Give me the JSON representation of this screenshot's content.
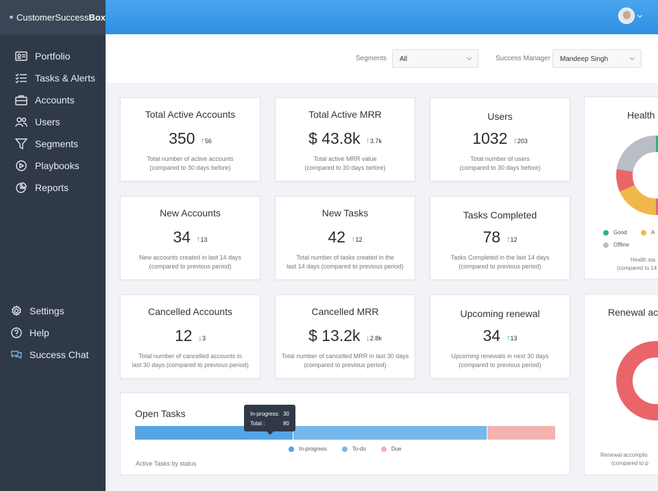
{
  "app": {
    "logo_prefix": "CustomerSuccess",
    "logo_suffix": "Box"
  },
  "sidebar": {
    "items": [
      {
        "label": "Portfolio",
        "icon": "portfolio-icon"
      },
      {
        "label": "Tasks & Alerts",
        "icon": "tasks-icon"
      },
      {
        "label": "Accounts",
        "icon": "briefcase-icon"
      },
      {
        "label": "Users",
        "icon": "users-icon"
      },
      {
        "label": "Segments",
        "icon": "filter-icon"
      },
      {
        "label": "Playbooks",
        "icon": "play-icon"
      },
      {
        "label": "Reports",
        "icon": "pie-chart-icon"
      }
    ],
    "bottom_items": [
      {
        "label": "Settings",
        "icon": "gear-icon"
      },
      {
        "label": "Help",
        "icon": "help-icon"
      },
      {
        "label": "Success Chat",
        "icon": "chat-icon"
      }
    ]
  },
  "filters": {
    "segments_label": "Segments",
    "segments_value": "All",
    "manager_label": "Success Manager",
    "manager_value": "Mandeep Singh"
  },
  "cards": [
    {
      "title": "Total Active Accounts",
      "value": "350",
      "delta": "56",
      "dir": "up",
      "desc1": "Total number of active accounts",
      "desc2": "(compared to 30 days before)"
    },
    {
      "title": "Total Active MRR",
      "value": "$ 43.8k",
      "delta": "3.7k",
      "dir": "up",
      "desc1": "Total active MRR value",
      "desc2": "(compared to 30 days before)"
    },
    {
      "title": "Users",
      "value": "1032",
      "delta": "203",
      "dir": "up",
      "desc1": "Total number of users",
      "desc2": "(compared to 30 days before)"
    },
    {
      "title": "New Accounts",
      "value": "34",
      "delta": "13",
      "dir": "up",
      "desc1": "New accounts created in last 14 days",
      "desc2": "(compared to previous period)"
    },
    {
      "title": "New Tasks",
      "value": "42",
      "delta": "12",
      "dir": "up",
      "desc1": "Total number of tasks created in the",
      "desc2": "last 14 days (compared to previous period)"
    },
    {
      "title": "Tasks Completed",
      "value": "78",
      "delta": "12",
      "dir": "up",
      "desc1": "Tasks Completed in the last 14 days",
      "desc2": "(compared to previous period)"
    },
    {
      "title": "Cancelled Accounts",
      "value": "12",
      "delta": "3",
      "dir": "down",
      "desc1": "Total number of cancelled accounts in",
      "desc2": "last 30 days (compared to previous period)"
    },
    {
      "title": "Cancelled MRR",
      "value": "$ 13.2k",
      "delta": "2.8k",
      "dir": "down",
      "desc1": "Total number of cancelled MRR in last 30 days",
      "desc2": "(compared to previous period)"
    },
    {
      "title": "Upcoming renewal",
      "value": "34",
      "delta": "13",
      "dir": "up",
      "desc1": "Upcoming renewals in next 30 days",
      "desc2": "(compared to previous period)"
    }
  ],
  "open_tasks": {
    "title": "Open Tasks",
    "subtitle": "Active Tasks by status",
    "total": 80,
    "segments": [
      {
        "name": "In-progress",
        "value": 30,
        "color": "#55a4e6"
      },
      {
        "name": "To-do",
        "value": 37,
        "color": "#76b8ec"
      },
      {
        "name": "Due",
        "value": 13,
        "color": "#f4b3b0"
      }
    ],
    "tooltip": {
      "label1": "In-progress:",
      "value1": "30",
      "label2": "Total :",
      "value2": "80"
    }
  },
  "health_panel": {
    "title": "Health",
    "legend": [
      "Good",
      "A",
      "Offline"
    ],
    "caption1": "Health sta",
    "caption2": "(compared to 14"
  },
  "renewal_panel": {
    "title": "Renewal acc",
    "caption1": "Renewal accomplis",
    "caption2": "(compared to p"
  },
  "colors": {
    "good": "#2bb673",
    "average": "#f0b849",
    "poor": "#e9656a",
    "offline": "#b9bec5",
    "accent": "#2f8fe3"
  }
}
